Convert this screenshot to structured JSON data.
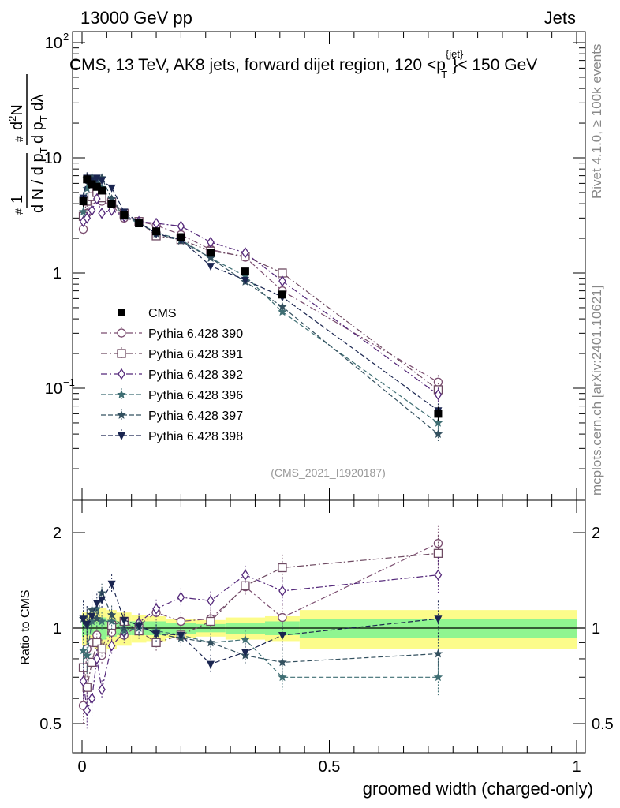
{
  "header": {
    "left": "13000 GeV pp",
    "right": "Jets",
    "side_rivet": "Rivet 4.1.0, ≥ 100k events",
    "side_mcplots": "mcplots.cern.ch [arXiv:2401.10621]"
  },
  "chart_data": [
    {
      "type": "scatter",
      "panel": "main",
      "title": "CMS, 13 TeV, AK8 jets, forward dijet region, 120 <p",
      "title_sup": "{jet}",
      "title_sub": "T",
      "title_tail": "}< 150 GeV",
      "watermark": "(CMS_2021_I1920187)",
      "ylabel": "1/dN/dp_T dN²/dp_T dλ",
      "yscale": "log",
      "xlim": [
        0,
        1
      ],
      "ylim": [
        0.0125,
        150
      ],
      "ytick_labels": {
        "1": "1",
        "10": "10",
        "100": "10",
        "100_sup": "2",
        "0.1": "10",
        "0.1_sup": "−1"
      },
      "x": [
        0.0025,
        0.01,
        0.02,
        0.03,
        0.04,
        0.06,
        0.085,
        0.115,
        0.15,
        0.2,
        0.26,
        0.33,
        0.405,
        0.72
      ],
      "series": [
        {
          "name": "CMS",
          "style": "data",
          "color": "#000000",
          "marker": "square-filled",
          "dash": "none",
          "values": [
            4.2,
            6.5,
            5.9,
            5.6,
            5.2,
            4.0,
            3.2,
            2.7,
            2.3,
            2.05,
            1.5,
            1.03,
            0.65,
            0.06
          ]
        },
        {
          "name": "Pythia 6.428 390",
          "color": "#7a4c6f",
          "marker": "circle-open",
          "dash": "8,3,2,3",
          "values": [
            2.4,
            3.3,
            4.3,
            5.1,
            4.2,
            3.9,
            3.0,
            2.8,
            2.6,
            2.15,
            1.6,
            1.37,
            0.7,
            0.113
          ]
        },
        {
          "name": "Pythia 6.428 391",
          "color": "#6e4a62",
          "marker": "square-open",
          "dash": "8,3,2,3",
          "values": [
            3.1,
            4.2,
            4.6,
            5.0,
            4.5,
            4.1,
            3.3,
            2.8,
            2.1,
            1.95,
            1.55,
            1.4,
            1.0,
            0.097
          ]
        },
        {
          "name": "Pythia 6.428 392",
          "color": "#54287a",
          "marker": "diamond-open",
          "dash": "8,3,2,3",
          "values": [
            2.8,
            3.0,
            3.5,
            4.4,
            3.3,
            3.5,
            3.1,
            2.8,
            2.7,
            2.55,
            1.85,
            1.5,
            0.85,
            0.088
          ]
        },
        {
          "name": "Pythia 6.428 396",
          "color": "#3f6e73",
          "marker": "star",
          "dash": "6,3",
          "values": [
            3.4,
            5.4,
            6.2,
            6.4,
            5.5,
            4.2,
            3.1,
            2.7,
            2.25,
            1.95,
            1.35,
            0.94,
            0.46,
            0.05
          ]
        },
        {
          "name": "Pythia 6.428 397",
          "color": "#33505f",
          "marker": "star",
          "dash": "6,3",
          "values": [
            4.5,
            6.6,
            6.8,
            6.0,
            6.7,
            4.4,
            3.2,
            2.75,
            2.2,
            1.9,
            1.35,
            0.84,
            0.51,
            0.04
          ]
        },
        {
          "name": "Pythia 6.428 398",
          "color": "#1a2550",
          "marker": "triangle-down-filled",
          "dash": "6,3",
          "values": [
            4.5,
            6.7,
            6.4,
            6.7,
            6.4,
            5.5,
            3.4,
            2.75,
            2.2,
            1.95,
            1.15,
            0.87,
            0.62,
            0.064
          ]
        }
      ]
    },
    {
      "type": "scatter",
      "panel": "ratio",
      "ylabel": "Ratio to CMS",
      "xlabel": "groomed width (charged-only)",
      "xlim": [
        0,
        1
      ],
      "ylim": [
        0.42,
        2.35
      ],
      "yticks": [
        0.5,
        1,
        2
      ],
      "ytick_labels": [
        "0.5",
        "1",
        "2"
      ],
      "xticks": [
        0,
        0.5,
        1
      ],
      "xtick_labels": [
        "0",
        "0.5",
        "1"
      ],
      "x": [
        0.0025,
        0.01,
        0.02,
        0.03,
        0.04,
        0.06,
        0.085,
        0.115,
        0.15,
        0.2,
        0.26,
        0.33,
        0.405,
        0.72
      ],
      "band_edges": [
        0,
        0.005,
        0.015,
        0.025,
        0.035,
        0.05,
        0.07,
        0.1,
        0.13,
        0.17,
        0.23,
        0.29,
        0.37,
        0.44,
        1.0
      ],
      "band_inner": [
        0.06,
        0.05,
        0.05,
        0.05,
        0.08,
        0.06,
        0.05,
        0.05,
        0.05,
        0.04,
        0.03,
        0.04,
        0.05,
        0.07
      ],
      "band_outer": [
        0.12,
        0.12,
        0.12,
        0.14,
        0.16,
        0.14,
        0.12,
        0.1,
        0.09,
        0.07,
        0.06,
        0.08,
        0.09,
        0.14
      ],
      "series": [
        {
          "name": "Pythia 6.428 390",
          "color": "#7a4c6f",
          "marker": "circle-open",
          "dash": "8,3,2,3",
          "values": [
            0.57,
            0.86,
            0.9,
            0.95,
            0.82,
            0.97,
            0.95,
            1.02,
            1.12,
            1.05,
            1.07,
            1.35,
            1.08,
            1.85
          ]
        },
        {
          "name": "Pythia 6.428 391",
          "color": "#6e4a62",
          "marker": "square-open",
          "dash": "8,3,2,3",
          "values": [
            0.75,
            0.65,
            0.78,
            0.9,
            0.86,
            1.02,
            1.05,
            0.98,
            0.9,
            0.95,
            1.05,
            1.36,
            1.55,
            1.72
          ]
        },
        {
          "name": "Pythia 6.428 392",
          "color": "#54287a",
          "marker": "diamond-open",
          "dash": "8,3,2,3",
          "values": [
            0.68,
            0.55,
            0.6,
            0.8,
            0.64,
            0.88,
            0.97,
            1.04,
            1.15,
            1.25,
            1.22,
            1.47,
            1.31,
            1.47
          ]
        },
        {
          "name": "Pythia 6.428 396",
          "color": "#3f6e73",
          "marker": "star",
          "dash": "6,3",
          "values": [
            0.85,
            0.82,
            1.05,
            1.15,
            1.05,
            1.05,
            0.98,
            1.0,
            0.98,
            0.95,
            0.9,
            0.92,
            0.7,
            0.7
          ]
        },
        {
          "name": "Pythia 6.428 397",
          "color": "#33505f",
          "marker": "star",
          "dash": "6,3",
          "values": [
            1.07,
            1.02,
            1.14,
            1.07,
            1.29,
            1.1,
            1.0,
            1.02,
            0.96,
            0.93,
            0.9,
            0.82,
            0.78,
            0.83
          ]
        },
        {
          "name": "Pythia 6.428 398",
          "color": "#1a2550",
          "marker": "triangle-down-filled",
          "dash": "6,3",
          "values": [
            1.07,
            1.03,
            1.09,
            1.2,
            1.23,
            1.38,
            1.06,
            1.02,
            0.96,
            0.95,
            0.77,
            0.84,
            0.95,
            1.07
          ]
        }
      ]
    }
  ]
}
